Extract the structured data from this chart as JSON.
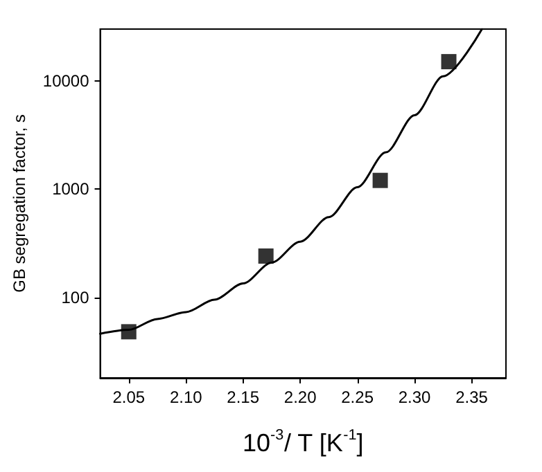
{
  "chart_data": {
    "type": "scatter",
    "xlabel": "10$^{-3}$/ T [K$^{-1}$]",
    "ylabel": "GB segregation factor, s",
    "xlim": [
      2.025,
      2.38
    ],
    "xticks": [
      2.05,
      {
        "value": 2.1,
        "label": "2.10"
      },
      2.15,
      {
        "value": 2.2,
        "label": "2.20"
      },
      2.25,
      {
        "value": 2.3,
        "label": "2.30"
      },
      2.35
    ],
    "ylim": [
      18,
      30000
    ],
    "yticks": [
      100,
      1000,
      10000
    ],
    "log": "y",
    "grid": false,
    "series": [
      {
        "marker": "square",
        "color": "#000000",
        "x": [
          2.05,
          2.17,
          2.27,
          2.33
        ],
        "values": [
          48,
          240,
          1200,
          15000
        ]
      },
      {
        "type": "line",
        "marker": "none",
        "line_style": "solid",
        "color": "#000000",
        "x": [
          2.025,
          2.05,
          2.075,
          2.1,
          2.125,
          2.15,
          2.175,
          2.2,
          2.225,
          2.25,
          2.275,
          2.3,
          2.325,
          2.359
        ],
        "values": [
          46,
          50,
          63,
          73,
          95,
          134,
          209,
          326,
          550,
          1040,
          2180,
          4800,
          11000,
          30000
        ]
      }
    ]
  }
}
